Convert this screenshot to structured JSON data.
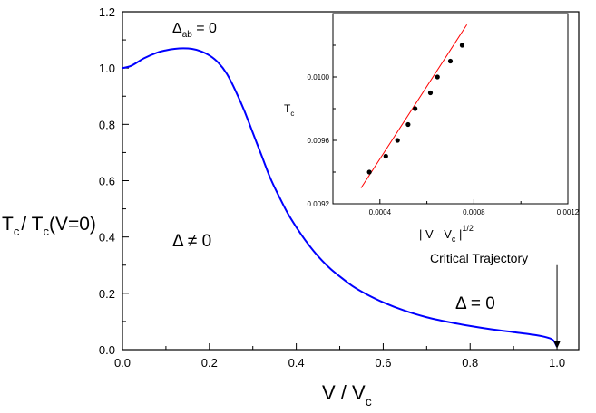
{
  "chart_data": [
    {
      "type": "line",
      "title": "",
      "xlabel": {
        "main": "V / V",
        "sub": "c"
      },
      "ylabel": {
        "p1": "T",
        "s1": "c",
        "p2": "/ T",
        "s2": "c",
        "p3": "(V=0)"
      },
      "xlim": [
        0.0,
        1.05
      ],
      "ylim": [
        0.0,
        1.2
      ],
      "xticks": [
        "0.0",
        "0.2",
        "0.4",
        "0.6",
        "0.8",
        "1.0"
      ],
      "yticks": [
        "0.0",
        "0.2",
        "0.4",
        "0.6",
        "0.8",
        "1.0",
        "1.2"
      ],
      "grid": false,
      "series": [
        {
          "color": "#0000ff",
          "x": [
            0.0,
            0.02,
            0.05,
            0.08,
            0.1,
            0.12,
            0.14,
            0.16,
            0.18,
            0.2,
            0.22,
            0.24,
            0.26,
            0.28,
            0.3,
            0.32,
            0.34,
            0.36,
            0.38,
            0.4,
            0.42,
            0.44,
            0.46,
            0.48,
            0.5,
            0.53,
            0.56,
            0.6,
            0.65,
            0.7,
            0.75,
            0.8,
            0.85,
            0.9,
            0.94,
            0.97,
            0.99,
            1.0
          ],
          "y": [
            1.0,
            1.008,
            1.035,
            1.055,
            1.063,
            1.068,
            1.07,
            1.068,
            1.06,
            1.045,
            1.02,
            0.98,
            0.92,
            0.85,
            0.77,
            0.69,
            0.61,
            0.545,
            0.485,
            0.435,
            0.39,
            0.35,
            0.315,
            0.285,
            0.26,
            0.225,
            0.198,
            0.168,
            0.138,
            0.115,
            0.098,
            0.084,
            0.072,
            0.062,
            0.054,
            0.046,
            0.035,
            0.01
          ]
        }
      ],
      "annotations": {
        "delta_ab": {
          "symbol": "Δ",
          "sub": "ab",
          "rest": " = 0"
        },
        "delta_ne": "Δ ≠ 0",
        "delta_eq": "Δ = 0",
        "critical": "Critical Trajectory"
      },
      "arrow_to": {
        "x": 1.0,
        "y": 0.0,
        "from_y": 0.3
      }
    },
    {
      "type": "scatter",
      "title": "",
      "xlabel": {
        "main": "| V - V",
        "sub": "c",
        "rest": " |",
        "sup": "1/2"
      },
      "ylabel": {
        "main": "T",
        "sub": "c"
      },
      "xlim": [
        0.0002,
        0.0012
      ],
      "ylim": [
        0.0092,
        0.0104
      ],
      "xticks": [
        "0.0004",
        "0.0008",
        "0.0012"
      ],
      "xtick_values": [
        0.0004,
        0.0008,
        0.0012
      ],
      "yticks": [
        "0.0092",
        "0.0096",
        "0.0100"
      ],
      "ytick_values": [
        0.0092,
        0.0096,
        0.01
      ],
      "grid": false,
      "points": {
        "color": "#000000",
        "x": [
          0.000355,
          0.000425,
          0.000475,
          0.00052,
          0.00055,
          0.000615,
          0.000645,
          0.0007,
          0.00075
        ],
        "y": [
          0.0094,
          0.0095,
          0.0096,
          0.0097,
          0.0098,
          0.0099,
          0.01,
          0.0101,
          0.0102
        ]
      },
      "fit_line": {
        "color": "#ff0000",
        "x": [
          0.00032,
          0.00077
        ],
        "y": [
          0.0093,
          0.01033
        ]
      }
    }
  ]
}
